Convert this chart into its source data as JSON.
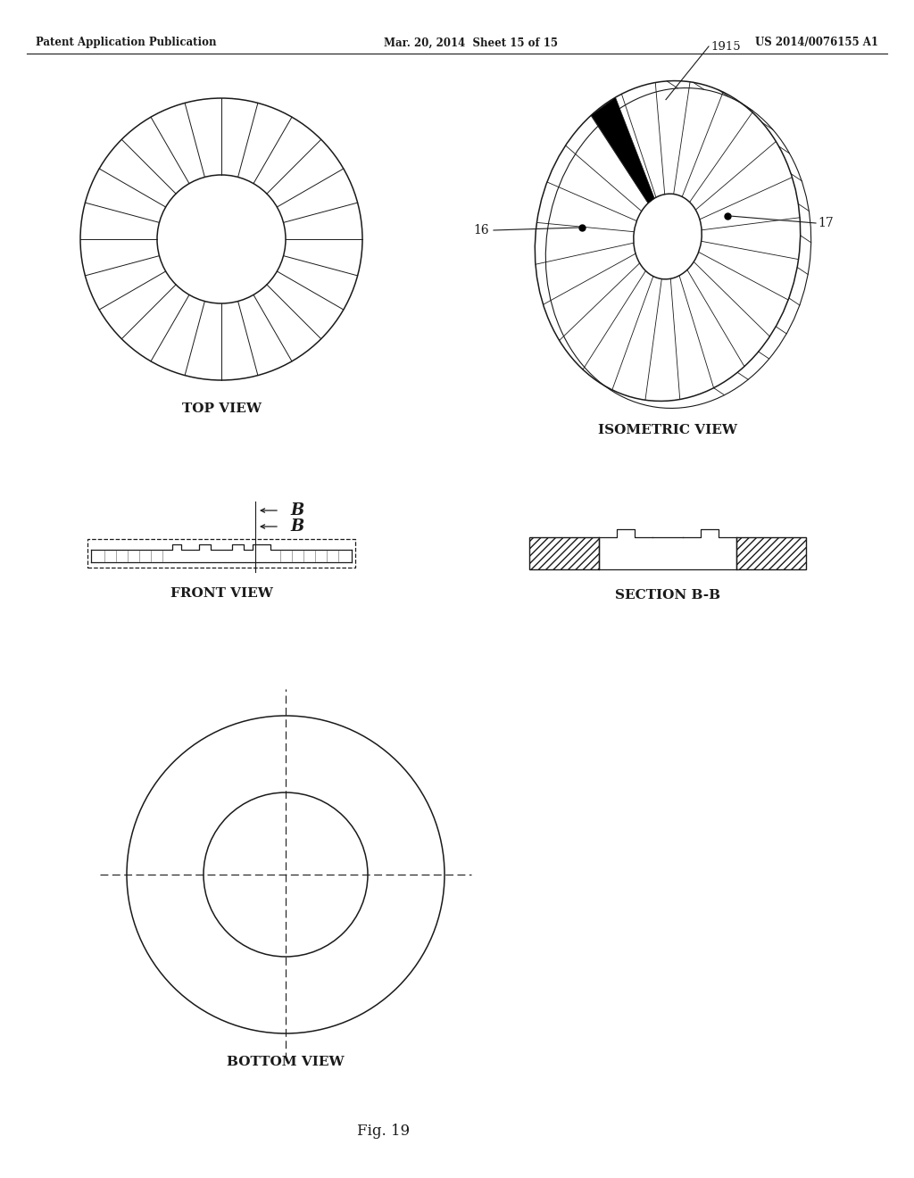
{
  "header_left": "Patent Application Publication",
  "header_mid": "Mar. 20, 2014  Sheet 15 of 15",
  "header_right": "US 2014/0076155 A1",
  "fig_label": "Fig. 19",
  "top_view_label": "TOP VIEW",
  "isometric_label": "ISOMETRIC VIEW",
  "front_view_label": "FRONT VIEW",
  "section_label": "SECTION B-B",
  "bottom_view_label": "BOTTOM VIEW",
  "bg_color": "#ffffff",
  "line_color": "#1a1a1a",
  "n_blades": 24
}
